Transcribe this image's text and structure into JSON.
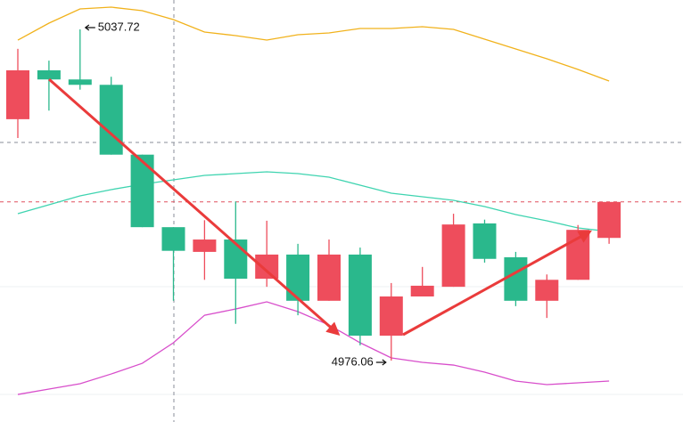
{
  "chart_data": {
    "type": "candlestick",
    "open": [
      5021.0,
      5030.1,
      5028.4,
      5027.4,
      5014.4,
      5000.9,
      4996.3,
      4998.6,
      4991.3,
      4995.8,
      4987.2,
      4995.8,
      4980.7,
      4988.0,
      4989.8,
      5001.6,
      4995.3,
      4987.2,
      4991.1,
      4998.9
    ],
    "high": [
      5034.1,
      5031.9,
      5037.72,
      5028.9,
      5014.4,
      5000.9,
      5002.2,
      5005.7,
      5002.1,
      4997.8,
      4998.6,
      4997.1,
      4990.5,
      4993.5,
      5003.4,
      5002.3,
      4996.3,
      4992.1,
      5001.3,
      5005.6
    ],
    "low": [
      5017.5,
      5022.6,
      5026.5,
      5014.4,
      5000.9,
      4987.2,
      4991.1,
      4982.9,
      4989.8,
      4984.5,
      4987.2,
      4978.9,
      4976.06,
      4988.0,
      4989.8,
      4994.3,
      4986.2,
      4984.0,
      4991.1,
      4997.8
    ],
    "close": [
      5030.1,
      5028.4,
      5027.4,
      5014.4,
      5000.9,
      4996.5,
      4998.6,
      4991.3,
      4995.8,
      4987.2,
      4995.8,
      4980.7,
      4988.0,
      4990.0,
      5001.4,
      4995.0,
      4987.2,
      4991.1,
      5000.4,
      5005.6
    ],
    "up_color": "#ee4d5c",
    "down_color": "#2ab88c",
    "bands": [
      {
        "color": "#f1b21c",
        "values": [
          5035.73,
          5038.88,
          5041.53,
          5041.86,
          5041.2,
          5039.54,
          5037.22,
          5036.56,
          5035.73,
          5036.73,
          5037.06,
          5037.89,
          5037.89,
          5038.22,
          5037.72,
          5035.9,
          5034.07,
          5032.25,
          5030.26,
          5028.11
        ]
      },
      {
        "color": "#3fd4b0",
        "values": [
          5003.41,
          5005.07,
          5006.72,
          5007.89,
          5008.88,
          5009.71,
          5010.54,
          5010.87,
          5011.2,
          5010.87,
          5010.21,
          5008.71,
          5007.22,
          5006.56,
          5005.9,
          5004.74,
          5003.24,
          5002.08,
          5000.76,
          5000.09
        ]
      },
      {
        "color": "#d84ecb",
        "values": [
          4969.76,
          4970.76,
          4971.75,
          4973.57,
          4975.56,
          4979.38,
          4984.51,
          4985.67,
          4987.0,
          4985.18,
          4982.69,
          4979.38,
          4976.56,
          4975.73,
          4975.23,
          4973.91,
          4972.25,
          4971.59,
          4971.92,
          4972.25
        ]
      }
    ],
    "hlines": [
      {
        "value": 5016.67,
        "color": "#8a8e99"
      },
      {
        "value": 5005.6,
        "color": "#e0505e"
      }
    ],
    "ylim": [
      4964.63,
      5043.19
    ]
  }
}
